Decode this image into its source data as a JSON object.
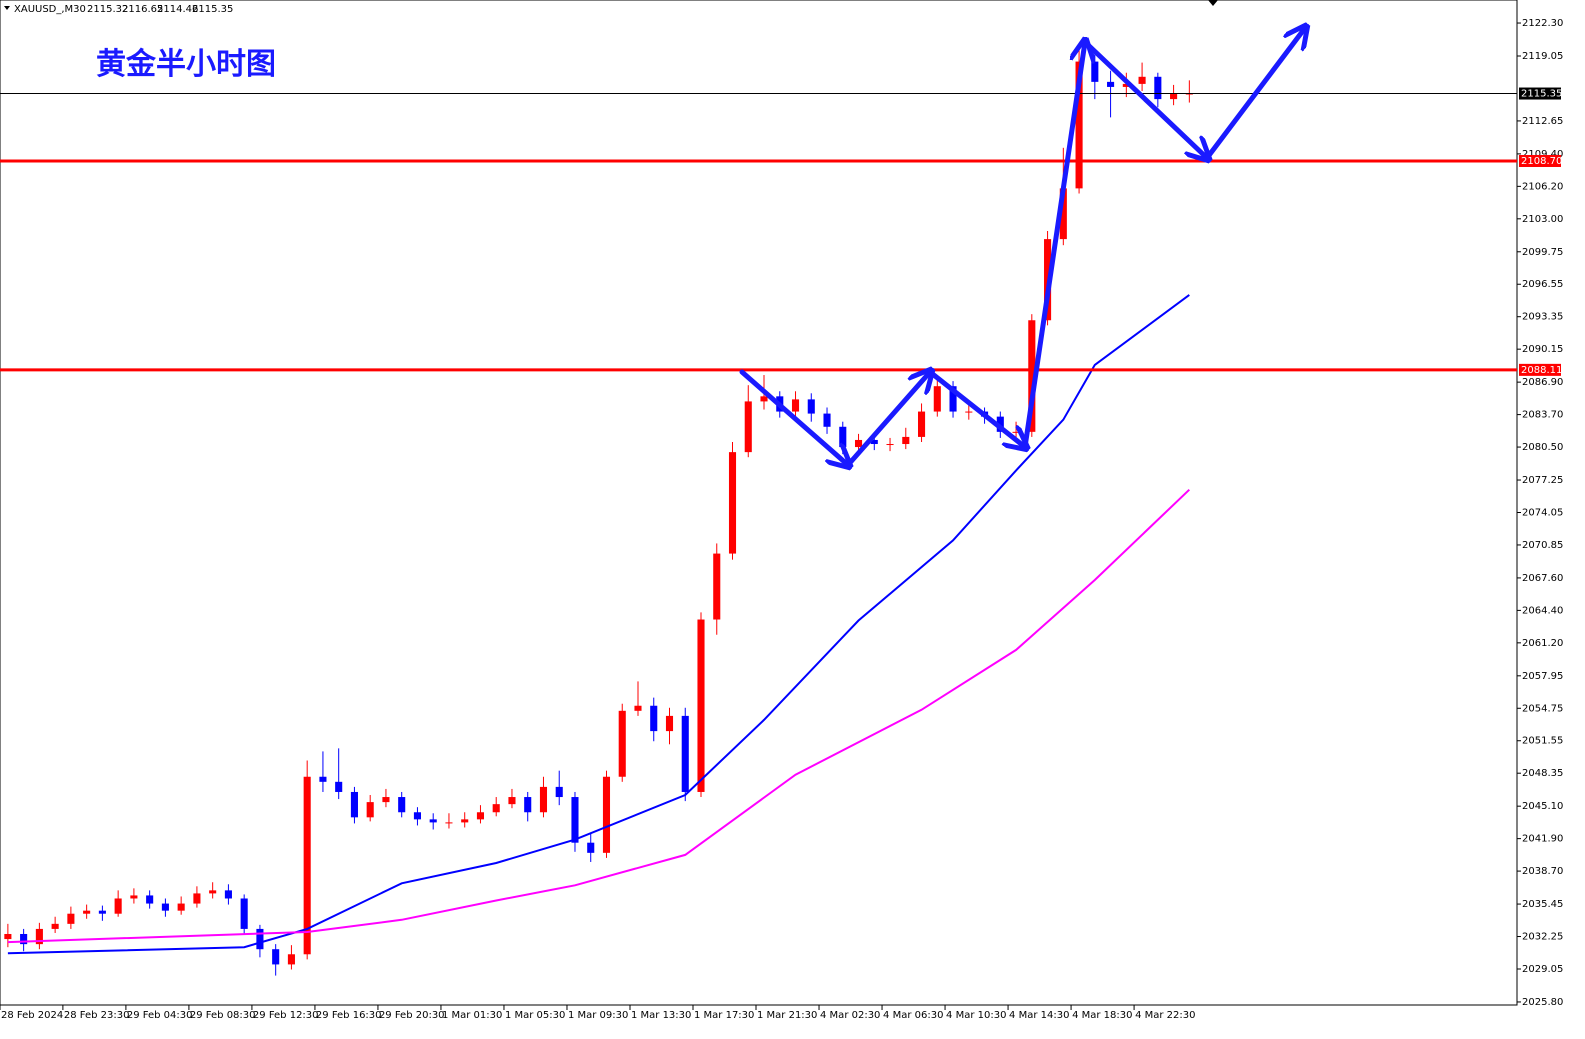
{
  "chart_data": {
    "type": "candlestick",
    "title": "黄金半小时图",
    "header": {
      "symbol": "XAUUSD_,M30",
      "open": 2115.32,
      "high": 2116.65,
      "low": 2114.46,
      "close": 2115.35
    },
    "up_color": "#ff0000",
    "down_color": "#0000ff",
    "open": [
      2032,
      2032.5,
      2031.5,
      2033,
      2033.5,
      2034.5,
      2034.8,
      2034.5,
      2036,
      2036.3,
      2035.5,
      2034.8,
      2035.5,
      2036.5,
      2036.8,
      2036,
      2033,
      2031,
      2029.5,
      2030.5,
      2048,
      2047.5,
      2046.5,
      2044,
      2045.5,
      2046,
      2044.5,
      2043.8,
      2043.5,
      2043.5,
      2043.8,
      2044.5,
      2045.3,
      2046,
      2044.5,
      2047,
      2046,
      2041.5,
      2040.5,
      2048,
      2054.5,
      2055,
      2052.5,
      2054,
      2046.5,
      2063.5,
      2070,
      2080,
      2085,
      2085.5,
      2084,
      2085.2,
      2083.8,
      2082.5,
      2080.5,
      2081.2,
      2080.8,
      2080.8,
      2081.5,
      2084,
      2086.5,
      2084,
      2084,
      2083.5,
      2082,
      2082,
      2093,
      2101,
      2106,
      2118.5,
      2116.5,
      2116,
      2116.3,
      2117,
      2114.8,
      2115.3
    ],
    "high": [
      2033.5,
      2033,
      2033.6,
      2034.2,
      2035.2,
      2035.4,
      2035.3,
      2036.8,
      2037,
      2036.8,
      2036,
      2036.2,
      2037.2,
      2037.6,
      2037.4,
      2036.4,
      2033.4,
      2031.5,
      2031.4,
      2049.6,
      2050.5,
      2050.8,
      2047,
      2046.2,
      2046.8,
      2046.5,
      2045,
      2044.4,
      2044.4,
      2044.5,
      2045.2,
      2046,
      2046.8,
      2046.5,
      2048,
      2048.6,
      2046.5,
      2042.4,
      2048.6,
      2055.2,
      2057.4,
      2055.8,
      2054.8,
      2054.8,
      2064.2,
      2071,
      2081,
      2086.6,
      2087.6,
      2086,
      2086,
      2085.8,
      2084.4,
      2083,
      2081.8,
      2081.8,
      2081.4,
      2082.4,
      2084.8,
      2087.6,
      2087,
      2084.8,
      2084.4,
      2084,
      2083,
      2093.6,
      2101.8,
      2110,
      2120,
      2119.4,
      2117.6,
      2117.4,
      2118.4,
      2117.4,
      2116.2,
      2116.65
    ],
    "low": [
      2031.2,
      2030.8,
      2031,
      2032.6,
      2033,
      2034,
      2033.8,
      2034.2,
      2035.5,
      2035,
      2034.2,
      2034.4,
      2035.1,
      2036,
      2035.4,
      2032.4,
      2030.2,
      2028.4,
      2029,
      2030,
      2046.5,
      2045.8,
      2043.4,
      2043.6,
      2045,
      2044,
      2043.2,
      2042.8,
      2042.9,
      2043,
      2043.4,
      2044.1,
      2044.9,
      2043.6,
      2044,
      2045.2,
      2040.6,
      2039.6,
      2040,
      2047.5,
      2054,
      2051.5,
      2051.2,
      2045.6,
      2046,
      2062,
      2069.4,
      2079.5,
      2084.2,
      2083.4,
      2083.2,
      2083,
      2081.8,
      2079.8,
      2079.9,
      2080.2,
      2080.1,
      2080.3,
      2081,
      2083.5,
      2083.4,
      2083.2,
      2082.8,
      2081.4,
      2081,
      2081.5,
      2092.5,
      2100.4,
      2105.5,
      2114.8,
      2113,
      2115,
      2115.6,
      2114,
      2114.2,
      2114.46
    ],
    "close": [
      2032.5,
      2031.5,
      2033,
      2033.5,
      2034.5,
      2034.8,
      2034.5,
      2036,
      2036.3,
      2035.5,
      2034.8,
      2035.5,
      2036.5,
      2036.8,
      2036,
      2033,
      2031,
      2029.5,
      2030.5,
      2048,
      2047.5,
      2046.5,
      2044,
      2045.5,
      2046,
      2044.5,
      2043.8,
      2043.5,
      2043.5,
      2043.8,
      2044.5,
      2045.3,
      2046,
      2044.5,
      2047,
      2046,
      2041.5,
      2040.5,
      2048,
      2054.5,
      2055,
      2052.5,
      2054,
      2046.5,
      2063.5,
      2070,
      2080,
      2085,
      2085.5,
      2084,
      2085.2,
      2083.8,
      2082.5,
      2080.5,
      2081.2,
      2080.8,
      2080.8,
      2081.5,
      2084,
      2086.5,
      2084,
      2084,
      2083.5,
      2082,
      2082,
      2093,
      2101,
      2106,
      2118.5,
      2116.5,
      2116,
      2116.3,
      2117,
      2114.8,
      2115.3,
      2115.35
    ],
    "series": [
      {
        "color": "#0000ff",
        "x": [
          0,
          15,
          19,
          25,
          31,
          36,
          43,
          48,
          54,
          60,
          64,
          67,
          69,
          75
        ],
        "values": [
          2030.6,
          2031.2,
          2033,
          2037.5,
          2039.5,
          2041.8,
          2046.2,
          2053.6,
          2063.4,
          2071.3,
          2078.2,
          2083.2,
          2088.6,
          2095.5
        ]
      },
      {
        "color": "#ff00ff",
        "x": [
          0,
          19,
          25,
          31,
          36,
          43,
          50,
          58,
          64,
          69,
          75
        ],
        "values": [
          2031.7,
          2032.7,
          2033.9,
          2035.8,
          2037.3,
          2040.3,
          2048.2,
          2054.6,
          2060.5,
          2067.4,
          2076.3
        ]
      }
    ],
    "levels": [
      {
        "value": 2108.7,
        "label": "2108.70"
      },
      {
        "value": 2088.11,
        "label": "2088.11"
      }
    ],
    "level_color": "#ff0000",
    "price_line": {
      "value": 2115.35,
      "label": "2115.35"
    },
    "xlim": [
      -0.5,
      95.8
    ],
    "xticks": [
      {
        "value": 0,
        "label": "28 Feb 2024"
      },
      {
        "value": 4,
        "label": "28 Feb 23:30"
      },
      {
        "value": 8,
        "label": "29 Feb 04:30"
      },
      {
        "value": 12,
        "label": "29 Feb 08:30"
      },
      {
        "value": 16,
        "label": "29 Feb 12:30"
      },
      {
        "value": 20,
        "label": "29 Feb 16:30"
      },
      {
        "value": 24,
        "label": "29 Feb 20:30"
      },
      {
        "value": 28,
        "label": "1 Mar 01:30"
      },
      {
        "value": 32,
        "label": "1 Mar 05:30"
      },
      {
        "value": 36,
        "label": "1 Mar 09:30"
      },
      {
        "value": 40,
        "label": "1 Mar 13:30"
      },
      {
        "value": 44,
        "label": "1 Mar 17:30"
      },
      {
        "value": 48,
        "label": "1 Mar 21:30"
      },
      {
        "value": 52,
        "label": "4 Mar 02:30"
      },
      {
        "value": 56,
        "label": "4 Mar 06:30"
      },
      {
        "value": 60,
        "label": "4 Mar 10:30"
      },
      {
        "value": 64,
        "label": "4 Mar 14:30"
      },
      {
        "value": 68,
        "label": "4 Mar 18:30"
      },
      {
        "value": 72,
        "label": "4 Mar 22:30"
      }
    ],
    "ylim": [
      2025.5,
      2124.57
    ],
    "yticks": [
      {
        "value": 2122.3,
        "label": "2122.30"
      },
      {
        "value": 2119.05,
        "label": "2119.05"
      },
      {
        "value": 2112.65,
        "label": "2112.65"
      },
      {
        "value": 2109.4,
        "label": "2109.40"
      },
      {
        "value": 2106.2,
        "label": "2106.20"
      },
      {
        "value": 2103.0,
        "label": "2103.00"
      },
      {
        "value": 2099.75,
        "label": "2099.75"
      },
      {
        "value": 2096.55,
        "label": "2096.55"
      },
      {
        "value": 2093.35,
        "label": "2093.35"
      },
      {
        "value": 2090.15,
        "label": "2090.15"
      },
      {
        "value": 2086.9,
        "label": "2086.90"
      },
      {
        "value": 2083.7,
        "label": "2083.70"
      },
      {
        "value": 2080.5,
        "label": "2080.50"
      },
      {
        "value": 2077.25,
        "label": "2077.25"
      },
      {
        "value": 2074.05,
        "label": "2074.05"
      },
      {
        "value": 2070.85,
        "label": "2070.85"
      },
      {
        "value": 2067.6,
        "label": "2067.60"
      },
      {
        "value": 2064.4,
        "label": "2064.40"
      },
      {
        "value": 2061.2,
        "label": "2061.20"
      },
      {
        "value": 2057.95,
        "label": "2057.95"
      },
      {
        "value": 2054.75,
        "label": "2054.75"
      },
      {
        "value": 2051.55,
        "label": "2051.55"
      },
      {
        "value": 2048.35,
        "label": "2048.35"
      },
      {
        "value": 2045.1,
        "label": "2045.10"
      },
      {
        "value": 2041.9,
        "label": "2041.90"
      },
      {
        "value": 2038.7,
        "label": "2038.70"
      },
      {
        "value": 2035.45,
        "label": "2035.45"
      },
      {
        "value": 2032.25,
        "label": "2032.25"
      },
      {
        "value": 2029.05,
        "label": "2029.05"
      },
      {
        "value": 2025.8,
        "label": "2025.80"
      }
    ]
  }
}
